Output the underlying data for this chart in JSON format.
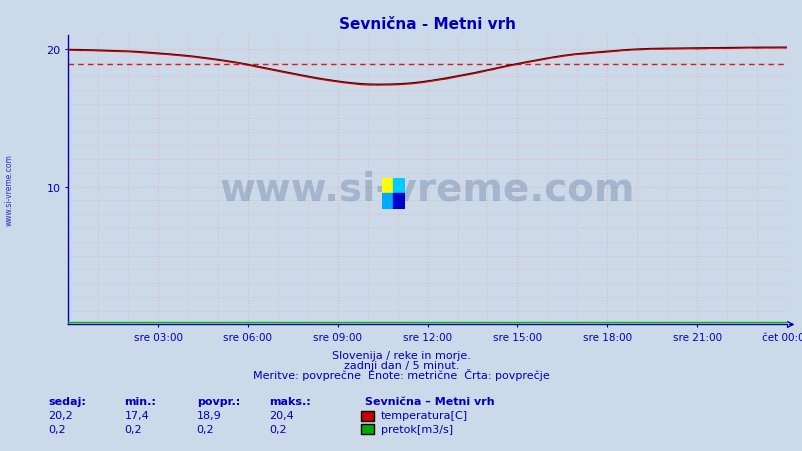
{
  "title": "Sevnična - Metni vrh",
  "bg_color": "#ccd9e8",
  "plot_bg_color": "#ccd9e8",
  "x_labels": [
    "sre 03:00",
    "sre 06:00",
    "sre 09:00",
    "sre 12:00",
    "sre 15:00",
    "sre 18:00",
    "sre 21:00",
    "čet 00:00"
  ],
  "x_ticks": [
    3,
    6,
    9,
    12,
    15,
    18,
    21,
    24
  ],
  "ylim": [
    0,
    21.0
  ],
  "yticks": [
    10,
    20
  ],
  "footer_line1": "Slovenija / reke in morje.",
  "footer_line2": "zadnji dan / 5 minut.",
  "footer_line3": "Meritve: povprečne  Enote: metrične  Črta: povprečje",
  "watermark": "www.si-vreme.com",
  "legend_title": "Sevnična – Metni vrh",
  "legend_items": [
    "temperatura[C]",
    "pretok[m3/s]"
  ],
  "legend_colors": [
    "#cc0000",
    "#00aa00"
  ],
  "stats_headers": [
    "sedaj:",
    "min.:",
    "povpr.:",
    "maks.:"
  ],
  "stats_temp": [
    "20,2",
    "17,4",
    "18,9",
    "20,4"
  ],
  "stats_pretok": [
    "0,2",
    "0,2",
    "0,2",
    "0,2"
  ],
  "avg_temp": 18.9,
  "grid_major_color": "#b0b8c8",
  "grid_minor_color": "#ddbcbc",
  "axis_color": "#0000bb",
  "temp_line_color": "#cc0000",
  "black_line_color": "#111111",
  "pretok_line_color": "#00bb00",
  "avg_line_color": "#cc0000"
}
